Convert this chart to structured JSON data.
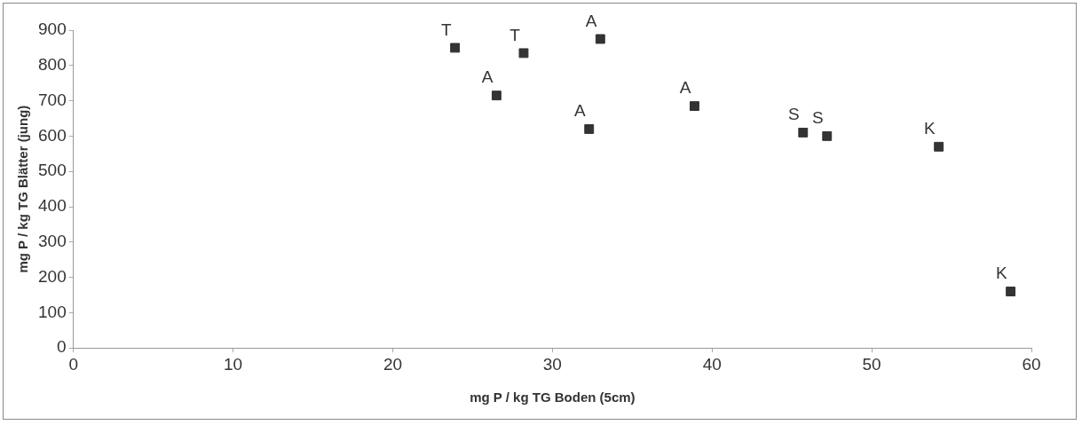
{
  "chart_data": {
    "type": "scatter",
    "xlabel": "mg P / kg TG Boden (5cm)",
    "ylabel": "mg P / kg TG Blätter (jung)",
    "x": [
      23.9,
      26.5,
      28.2,
      32.3,
      33.0,
      38.9,
      45.7,
      47.2,
      54.2,
      58.7
    ],
    "series": [
      {
        "color": "#333333",
        "values": [
          850,
          715,
          835,
          620,
          875,
          685,
          610,
          600,
          570,
          160
        ]
      }
    ],
    "xlim": [
      0,
      60
    ],
    "xticks": [
      0,
      10,
      20,
      30,
      40,
      50,
      60
    ],
    "ylim": [
      0,
      900
    ],
    "yticks": [
      0,
      100,
      200,
      300,
      400,
      500,
      600,
      700,
      800,
      900
    ],
    "grid": false,
    "legend": false,
    "marker": "square",
    "annotations": [
      {
        "text": "T",
        "x": 23.9,
        "y": 850
      },
      {
        "text": "A",
        "x": 26.5,
        "y": 715
      },
      {
        "text": "T",
        "x": 28.2,
        "y": 835
      },
      {
        "text": "A",
        "x": 32.3,
        "y": 620
      },
      {
        "text": "A",
        "x": 33.0,
        "y": 875
      },
      {
        "text": "A",
        "x": 38.9,
        "y": 685
      },
      {
        "text": "S",
        "x": 45.7,
        "y": 610
      },
      {
        "text": "S",
        "x": 47.2,
        "y": 600
      },
      {
        "text": "K",
        "x": 54.2,
        "y": 570
      },
      {
        "text": "K",
        "x": 58.7,
        "y": 160
      }
    ]
  }
}
